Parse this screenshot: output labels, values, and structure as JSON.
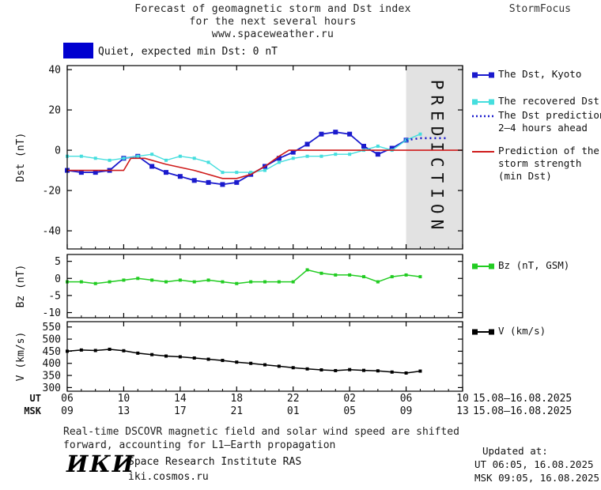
{
  "header": {
    "title_line1": "Forecast of geomagnetic storm and Dst index",
    "title_line2": "for the next several hours",
    "title_line3": "www.spaceweather.ru",
    "brand": "StormFocus"
  },
  "status": {
    "label": "Quiet, expected min Dst: 0 nT",
    "swatch_color": "#0000d0"
  },
  "chart_data": {
    "type": "line",
    "title": "Forecast of geomagnetic storm and Dst index for the next several hours",
    "x_unit": "hours UT, 15.08-16.08.2025",
    "x_hours": [
      6,
      34
    ],
    "xaxis": {
      "ticks": [
        6,
        10,
        14,
        18,
        22,
        26,
        30,
        34
      ],
      "ut_labels": [
        "06",
        "10",
        "14",
        "18",
        "22",
        "02",
        "06",
        "10"
      ],
      "msk_labels": [
        "09",
        "13",
        "17",
        "21",
        "01",
        "05",
        "09",
        "13"
      ],
      "ut_prefix": "UT",
      "msk_prefix": "MSK",
      "date_range": "15.08–16.08.2025"
    },
    "panels": [
      {
        "id": "dst",
        "ylabel": "Dst (nT)",
        "ylim": [
          -49,
          42
        ],
        "yticks": [
          40,
          20,
          0,
          -20,
          -40
        ],
        "prediction_band": {
          "from": 30,
          "to": 34,
          "label": "PREDICTION",
          "fill": "#e2e2e2",
          "text_color": "#c0c0c0"
        },
        "series": [
          {
            "name": "The Dst, Kyoto",
            "color": "#1a1acd",
            "marker": 6,
            "width": 1.8,
            "x_start": 6,
            "values": [
              -10,
              -11,
              -11,
              -10,
              -4,
              -3,
              -8,
              -11,
              -13,
              -15,
              -16,
              -17,
              -16,
              -12,
              -8,
              -4,
              -1,
              3,
              8,
              9,
              8,
              2,
              -2,
              1,
              5
            ]
          },
          {
            "name": "The recovered Dst",
            "color": "#45dede",
            "marker": 4,
            "width": 1.4,
            "x_start": 6,
            "values": [
              -3,
              -3,
              -4,
              -5,
              -4,
              -3,
              -2,
              -5,
              -3,
              -4,
              -6,
              -11,
              -11,
              -11,
              -10,
              -6,
              -4,
              -3,
              -3,
              -2,
              -2,
              0,
              2,
              0,
              5,
              8
            ]
          },
          {
            "name": "The Dst prediction 2–4 hours ahead",
            "color": "#1a1acd",
            "width": 2.6,
            "dash": "2 4",
            "x_start": 30,
            "values": [
              5,
              6,
              6,
              6
            ]
          },
          {
            "name": "Prediction of the storm strength (min Dst)",
            "color": "#cf1b1b",
            "width": 1.6,
            "points": [
              [
                6,
                -10
              ],
              [
                10,
                -10
              ],
              [
                10.5,
                -4
              ],
              [
                11.5,
                -4
              ],
              [
                13,
                -7
              ],
              [
                15,
                -10
              ],
              [
                17,
                -14
              ],
              [
                18,
                -14
              ],
              [
                19,
                -12
              ],
              [
                20,
                -8
              ],
              [
                21,
                -3
              ],
              [
                21.7,
                0
              ],
              [
                34,
                0
              ]
            ]
          }
        ]
      },
      {
        "id": "bz",
        "ylabel": "Bz (nT)",
        "ylim": [
          -11.5,
          7
        ],
        "yticks": [
          5,
          0,
          -5,
          -10
        ],
        "series": [
          {
            "name": "Bz (nT, GSM)",
            "color": "#22cc22",
            "marker": 4,
            "width": 1.5,
            "x_start": 6,
            "values": [
              -1,
              -1,
              -1.5,
              -1,
              -0.5,
              0,
              -0.5,
              -1,
              -0.5,
              -1,
              -0.5,
              -1,
              -1.5,
              -1,
              -1,
              -1,
              -1,
              2.5,
              1.5,
              1,
              1,
              0.5,
              -1,
              0.5,
              1,
              0.5
            ]
          }
        ]
      },
      {
        "id": "v",
        "ylabel": "V (km/s)",
        "ylim": [
          285,
          572
        ],
        "yticks": [
          550,
          500,
          450,
          400,
          350,
          300
        ],
        "series": [
          {
            "name": "V (km/s)",
            "color": "#000000",
            "marker": 4,
            "width": 1.5,
            "x_start": 6,
            "values": [
              450,
              455,
              453,
              458,
              452,
              442,
              436,
              430,
              427,
              422,
              417,
              412,
              405,
              400,
              394,
              388,
              382,
              377,
              373,
              370,
              374,
              371,
              369,
              364,
              360,
              368
            ]
          }
        ]
      }
    ]
  },
  "legend": {
    "items": [
      {
        "label": "The Dst, Kyoto",
        "color": "#1a1acd",
        "style": "solid-markers"
      },
      {
        "label": "The recovered Dst",
        "color": "#45dede",
        "style": "solid-markers"
      },
      {
        "label": "The Dst prediction\n2–4 hours ahead",
        "color": "#1a1acd",
        "style": "dotted"
      },
      {
        "label": "Prediction of the\nstorm strength\n(min Dst)",
        "color": "#cf1b1b",
        "style": "solid"
      },
      {
        "label": "Bz (nT, GSM)",
        "color": "#22cc22",
        "style": "solid-markers"
      },
      {
        "label": "V (km/s)",
        "color": "#000000",
        "style": "solid-markers"
      }
    ]
  },
  "footnote": {
    "line1": "Real-time DSCOVR magnetic field and solar wind speed are shifted",
    "line2": "forward, accounting for L1–Earth propagation"
  },
  "footer": {
    "logo": "ИКИ",
    "institute": "Space Research Institute RAS",
    "site": "iki.cosmos.ru",
    "updated_label": "Updated at:",
    "updated_ut": "UT  06:05, 16.08.2025",
    "updated_msk": "MSK 09:05, 16.08.2025"
  }
}
